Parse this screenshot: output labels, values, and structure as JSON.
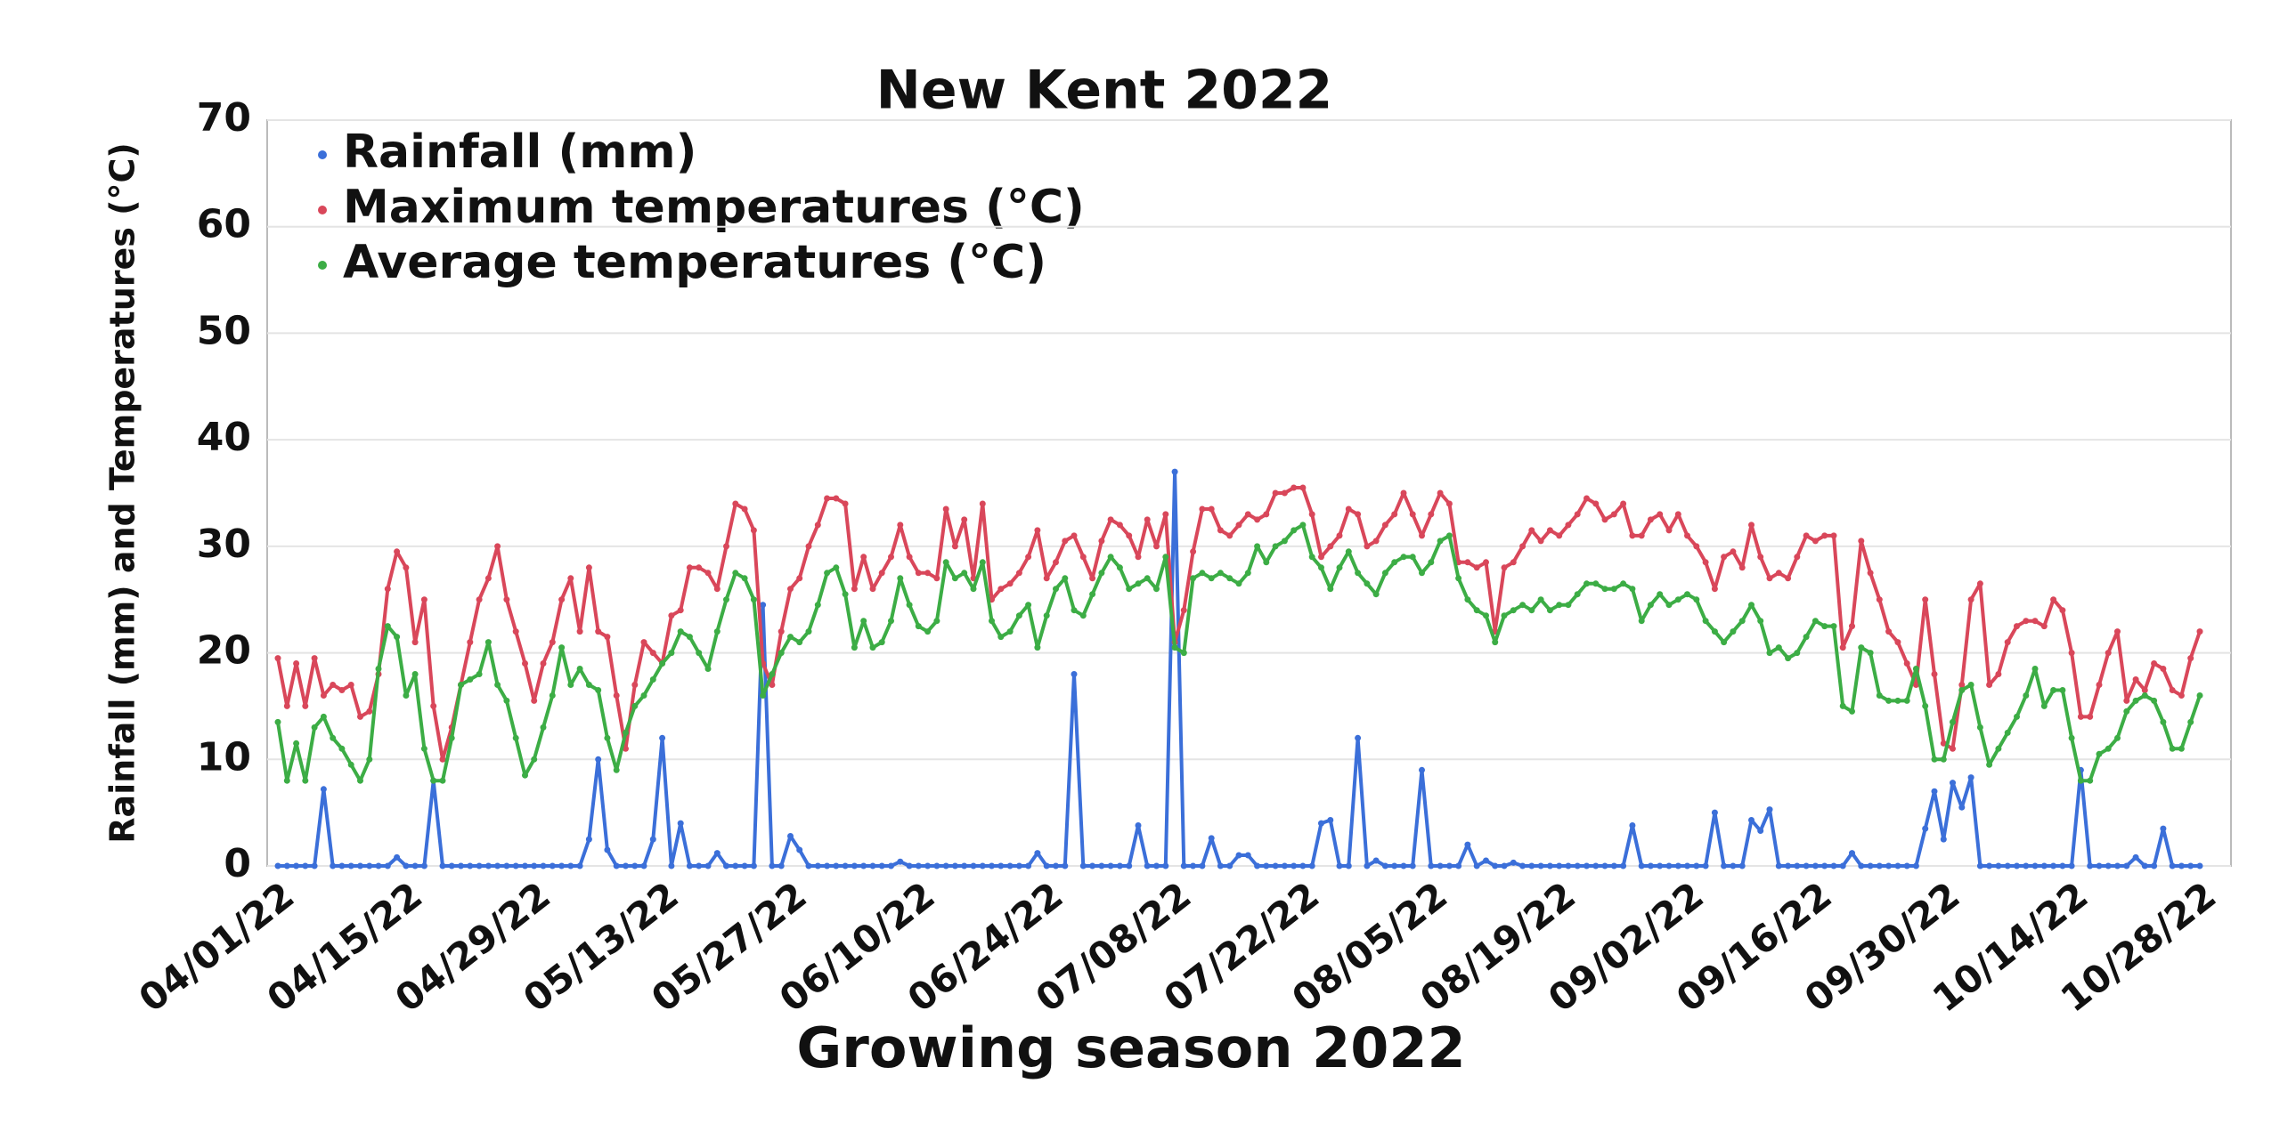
{
  "chart_data": {
    "type": "line",
    "title": "New Kent 2022",
    "x_label": "Growing season 2022",
    "y_label": "Rainfall (mm) and Temperatures (°C)",
    "categories": [
      "04/01/22",
      null,
      null,
      null,
      null,
      null,
      null,
      null,
      null,
      null,
      null,
      null,
      null,
      null,
      "04/15/22",
      null,
      null,
      null,
      null,
      null,
      null,
      null,
      null,
      null,
      null,
      null,
      null,
      null,
      "04/29/22",
      null,
      null,
      null,
      null,
      null,
      null,
      null,
      null,
      null,
      null,
      null,
      null,
      null,
      "05/13/22",
      null,
      null,
      null,
      null,
      null,
      null,
      null,
      null,
      null,
      null,
      null,
      null,
      null,
      "05/27/22",
      null,
      null,
      null,
      null,
      null,
      null,
      null,
      null,
      null,
      null,
      null,
      null,
      null,
      "06/10/22",
      null,
      null,
      null,
      null,
      null,
      null,
      null,
      null,
      null,
      null,
      null,
      null,
      null,
      "06/24/22",
      null,
      null,
      null,
      null,
      null,
      null,
      null,
      null,
      null,
      null,
      null,
      null,
      null,
      "07/08/22",
      null,
      null,
      null,
      null,
      null,
      null,
      null,
      null,
      null,
      null,
      null,
      null,
      null,
      "07/22/22",
      null,
      null,
      null,
      null,
      null,
      null,
      null,
      null,
      null,
      null,
      null,
      null,
      null,
      "08/05/22",
      null,
      null,
      null,
      null,
      null,
      null,
      null,
      null,
      null,
      null,
      null,
      null,
      null,
      "08/19/22",
      null,
      null,
      null,
      null,
      null,
      null,
      null,
      null,
      null,
      null,
      null,
      null,
      null,
      "09/02/22",
      null,
      null,
      null,
      null,
      null,
      null,
      null,
      null,
      null,
      null,
      null,
      null,
      null,
      "09/16/22",
      null,
      null,
      null,
      null,
      null,
      null,
      null,
      null,
      null,
      null,
      null,
      null,
      null,
      "09/30/22",
      null,
      null,
      null,
      null,
      null,
      null,
      null,
      null,
      null,
      null,
      null,
      null,
      null,
      "10/14/22",
      null,
      null,
      null,
      null,
      null,
      null,
      null,
      null,
      null,
      null,
      null,
      null,
      null,
      "10/28/22"
    ],
    "series": [
      {
        "name": "Rainfall (mm)",
        "color": "#3b6fd9",
        "values": [
          0,
          0,
          0,
          0,
          0,
          7.2,
          0,
          0,
          0,
          0,
          0,
          0,
          0,
          0.8,
          0,
          0,
          0,
          8,
          0,
          0,
          0,
          0,
          0,
          0,
          0,
          0,
          0,
          0,
          0,
          0,
          0,
          0,
          0,
          0,
          2.5,
          10,
          1.5,
          0,
          0,
          0,
          0,
          2.5,
          12,
          0,
          4,
          0,
          0,
          0,
          1.2,
          0,
          0,
          0,
          0,
          24.5,
          0,
          0,
          2.8,
          1.5,
          0,
          0,
          0,
          0,
          0,
          0,
          0,
          0,
          0,
          0,
          0.4,
          0,
          0,
          0,
          0,
          0,
          0,
          0,
          0,
          0,
          0,
          0,
          0,
          0,
          0,
          1.2,
          0,
          0,
          0,
          18,
          0,
          0,
          0,
          0,
          0,
          0,
          3.8,
          0,
          0,
          0,
          37,
          0,
          0,
          0,
          2.6,
          0,
          0,
          1,
          1,
          0,
          0,
          0,
          0,
          0,
          0,
          0,
          4,
          4.3,
          0,
          0,
          12,
          0,
          0.5,
          0,
          0,
          0,
          0,
          9,
          0,
          0,
          0,
          0,
          2,
          0,
          0.5,
          0,
          0,
          0.3,
          0,
          0,
          0,
          0,
          0,
          0,
          0,
          0,
          0,
          0,
          0,
          0,
          3.8,
          0,
          0,
          0,
          0,
          0,
          0,
          0,
          0,
          5,
          0,
          0,
          0,
          4.3,
          3.3,
          5.3,
          0,
          0,
          0,
          0,
          0,
          0,
          0,
          0,
          1.2,
          0,
          0,
          0,
          0,
          0,
          0,
          0,
          3.5,
          7,
          2.5,
          7.8,
          5.5,
          8.3,
          0,
          0,
          0,
          0,
          0,
          0,
          0,
          0,
          0,
          0,
          0,
          9,
          0,
          0,
          0,
          0,
          0,
          0.8,
          0,
          0,
          3.5,
          0,
          0,
          0,
          0
        ]
      },
      {
        "name": "Maximum temperatures (°C)",
        "color": "#d9475a",
        "values": [
          19.5,
          15,
          19,
          15,
          19.5,
          16,
          17,
          16.5,
          17,
          14,
          14.5,
          18,
          26,
          29.5,
          28,
          21,
          25,
          15,
          10,
          13,
          17,
          21,
          25,
          27,
          30,
          25,
          22,
          19,
          15.5,
          19,
          21,
          25,
          27,
          22,
          28,
          22,
          21.5,
          16,
          11,
          17,
          21,
          20,
          19,
          23.5,
          24,
          28,
          28,
          27.5,
          26,
          30,
          34,
          33.5,
          31.5,
          19,
          17,
          22,
          26,
          27,
          30,
          32,
          34.5,
          34.5,
          34,
          26,
          29,
          26,
          27.5,
          29,
          32,
          29,
          27.5,
          27.5,
          27,
          33.5,
          30,
          32.5,
          27,
          34,
          25,
          26,
          26.5,
          27.5,
          29,
          31.5,
          27,
          28.5,
          30.5,
          31,
          29,
          27,
          30.5,
          32.5,
          32,
          31,
          29,
          32.5,
          30,
          33,
          21,
          24,
          29.5,
          33.5,
          33.5,
          31.5,
          31,
          32,
          33,
          32.5,
          33,
          35,
          35,
          35.5,
          35.5,
          33,
          29,
          30,
          31,
          33.5,
          33,
          30,
          30.5,
          32,
          33,
          35,
          33,
          31,
          33,
          35,
          34,
          28.5,
          28.5,
          28,
          28.5,
          22,
          28,
          28.5,
          30,
          31.5,
          30.5,
          31.5,
          31,
          32,
          33,
          34.5,
          34,
          32.5,
          33,
          34,
          31,
          31,
          32.5,
          33,
          31.5,
          33,
          31,
          30,
          28.5,
          26,
          29,
          29.5,
          28,
          32,
          29,
          27,
          27.5,
          27,
          29,
          31,
          30.5,
          31,
          31,
          20.5,
          22.5,
          30.5,
          27.5,
          25,
          22,
          21,
          19,
          17,
          25,
          18,
          11.5,
          11,
          17,
          25,
          26.5,
          17,
          18,
          21,
          22.5,
          23,
          23,
          22.5,
          25,
          24,
          20,
          14,
          14,
          17,
          20,
          22,
          15.5,
          17.5,
          16.5,
          19,
          18.5,
          16.5,
          16,
          19.5,
          22
        ]
      },
      {
        "name": "Average temperatures (°C)",
        "color": "#3cad45",
        "values": [
          13.5,
          8,
          11.5,
          8,
          13,
          14,
          12,
          11,
          9.5,
          8,
          10,
          18.5,
          22.5,
          21.5,
          16,
          18,
          11,
          8,
          8,
          12,
          17,
          17.5,
          18,
          21,
          17,
          15.5,
          12,
          8.5,
          10,
          13,
          16,
          20.5,
          17,
          18.5,
          17,
          16.5,
          12,
          9,
          12.5,
          15,
          16,
          17.5,
          19,
          20,
          22,
          21.5,
          20,
          18.5,
          22,
          25,
          27.5,
          27,
          25,
          16,
          18,
          20,
          21.5,
          21,
          22,
          24.5,
          27.5,
          28,
          25.5,
          20.5,
          23,
          20.5,
          21,
          23,
          27,
          24.5,
          22.5,
          22,
          23,
          28.5,
          27,
          27.5,
          26,
          28.5,
          23,
          21.5,
          22,
          23.5,
          24.5,
          20.5,
          23.5,
          26,
          27,
          24,
          23.5,
          25.5,
          27.5,
          29,
          28,
          26,
          26.5,
          27,
          26,
          29,
          20.5,
          20,
          27,
          27.5,
          27,
          27.5,
          27,
          26.5,
          27.5,
          30,
          28.5,
          30,
          30.5,
          31.5,
          32,
          29,
          28,
          26,
          28,
          29.5,
          27.5,
          26.5,
          25.5,
          27.5,
          28.5,
          29,
          29,
          27.5,
          28.5,
          30.5,
          31,
          27,
          25,
          24,
          23.5,
          21,
          23.5,
          24,
          24.5,
          24,
          25,
          24,
          24.5,
          24.5,
          25.5,
          26.5,
          26.5,
          26,
          26,
          26.5,
          26,
          23,
          24.5,
          25.5,
          24.5,
          25,
          25.5,
          25,
          23,
          22,
          21,
          22,
          23,
          24.5,
          23,
          20,
          20.5,
          19.5,
          20,
          21.5,
          23,
          22.5,
          22.5,
          15,
          14.5,
          20.5,
          20,
          16,
          15.5,
          15.5,
          15.5,
          18.5,
          15,
          10,
          10,
          13.5,
          16.5,
          17,
          13,
          9.5,
          11,
          12.5,
          14,
          16,
          18.5,
          15,
          16.5,
          16.5,
          12,
          8,
          8,
          10.5,
          11,
          12,
          14.5,
          15.5,
          16,
          15.5,
          13.5,
          11,
          11,
          13.5,
          16
        ]
      }
    ],
    "ylim": [
      0,
      70
    ],
    "yticks": [
      0,
      10,
      20,
      30,
      40,
      50,
      60,
      70
    ],
    "grid": true
  }
}
